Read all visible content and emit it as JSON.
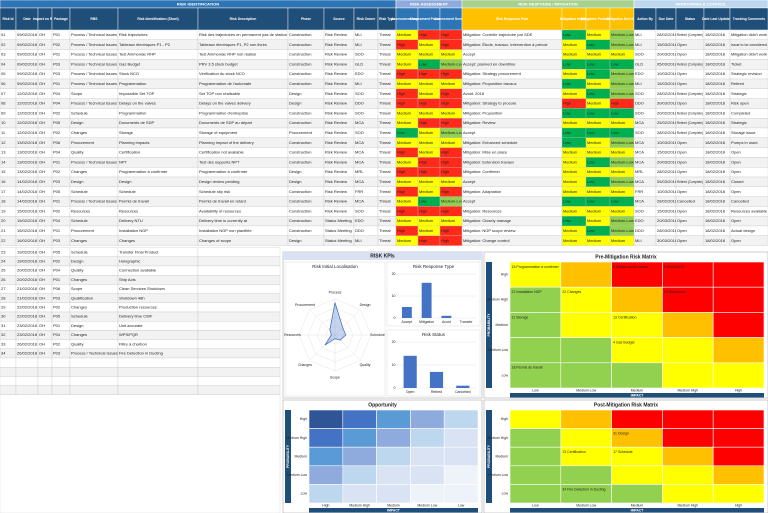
{
  "table": {
    "sections": [
      {
        "label": "RISK IDENTIFICATION"
      },
      {
        "label": "RISK ASSESSMENT"
      },
      {
        "label": "RISK RESPONSE / MITIGATION"
      },
      {
        "label": "MONITORING & CONTROL"
      }
    ],
    "columns": [
      "Risk Id",
      "Date",
      "Impact on Risk",
      "Package",
      "RBS",
      "Risk Identification (Short)",
      "Risk Description",
      "Phase",
      "Source",
      "Risk Owner",
      "Risk Type",
      "Assessment Impact",
      "Assessment Probability",
      "Assessment Severity",
      "Risk Response Plan",
      "Mitigation Impact",
      "Mitigation Probability",
      "Mitigation Severity",
      "Action By",
      "Due Date",
      "Status",
      "Date Last Updated",
      "Tracking Comments"
    ],
    "rows": [
      [
        "01",
        "09/02/2018",
        "OH",
        "P01",
        "Process / Technical Issues",
        "Risk trajectoires",
        "Risk des trajectoires en permanent pas de station",
        "Construction",
        "Risk Review",
        "MLI",
        "Threat",
        "Medium",
        "High",
        "High",
        "Mitigation: Contrôle trajectoire par SDE",
        "Low",
        "Medium",
        "Medium-Low",
        "MLI",
        "28/02/2018",
        "Retired (Complete)",
        "18/02/2018",
        "Mitigation didn't work"
      ],
      [
        "02",
        "09/02/2018",
        "OH",
        "P02",
        "Process / Technical Issues",
        "Tableaux électriques P1 - P2",
        "Tableaux électriques P1, P2 non livrés",
        "Construction",
        "Risk Review",
        "MLI",
        "Threat",
        "High",
        "Medium",
        "High",
        "Mitigation: Étude, travaux, intervention à prévoir",
        "Medium",
        "Low",
        "Medium-Low",
        "MLI",
        "15/03/2018",
        "Open",
        "18/02/2018",
        "Issue to be considered"
      ],
      [
        "03",
        "09/02/2018",
        "OH",
        "P01",
        "Process / Technical Issues",
        "Test Ammoniac RHP",
        "Test Ammoniac RHP non réalisé",
        "Construction",
        "Risk Review",
        "SOO",
        "Threat",
        "Medium",
        "Medium",
        "Medium",
        "Accept",
        "Medium",
        "Medium",
        "Medium",
        "SOO",
        "20/03/2018",
        "Open",
        "18/02/2018",
        "Mitigation didn't work"
      ],
      [
        "04",
        "09/02/2018",
        "OH",
        "P03",
        "Process / Technical Issues",
        "Gaz Budget",
        "PRV 3.5 stock budget",
        "Construction",
        "Risk Review",
        "GLD",
        "Threat",
        "Medium",
        "Low",
        "Medium-Low",
        "Accept: planned en downtime",
        "Low",
        "Low",
        "Low",
        "GLD",
        "05/03/2018",
        "Retired (Complete)",
        "18/02/2018",
        "Ticket"
      ],
      [
        "05",
        "09/02/2018",
        "OH",
        "P03",
        "Process / Technical Issues",
        "Stock NCO",
        "Vérification du stock NCO",
        "Construction",
        "Risk Review",
        "EDO",
        "Threat",
        "High",
        "High",
        "High",
        "Mitigation: Strategy procurement",
        "Medium",
        "Low",
        "Medium-Low",
        "EDO",
        "10/03/2018",
        "Open",
        "18/02/2018",
        "Strategic revision"
      ],
      [
        "06",
        "09/02/2018",
        "OH",
        "P01",
        "Process / Technical Issues",
        "Programmation",
        "Programmation de l'automate",
        "Construction",
        "Risk Review",
        "MLI",
        "Threat",
        "Medium",
        "Medium",
        "Medium",
        "Mitigation: Proposition travaux",
        "Low",
        "Medium",
        "Medium-Low",
        "MLI",
        "15/03/2018",
        "Open",
        "18/02/2018",
        "Retired"
      ],
      [
        "07",
        "12/02/2018",
        "OH",
        "P04",
        "Scope",
        "Impossible Set TOP",
        "Set TOP non réalisable",
        "Design",
        "Risk Review",
        "SOO",
        "Threat",
        "High",
        "Medium",
        "High",
        "Avoid: 2018",
        "Medium",
        "Low",
        "Medium-Low",
        "SOO",
        "28/02/2018",
        "Retired (Complete)",
        "18/02/2018",
        "Strategic"
      ],
      [
        "08",
        "12/02/2018",
        "OH",
        "P04",
        "Process / Technical Issues",
        "Delays on the valves",
        "Delays on the valves delivery",
        "Design",
        "Risk Review",
        "DDO",
        "Threat",
        "High",
        "High",
        "High",
        "Mitigation: Strategy to procure",
        "High",
        "Medium",
        "High",
        "DDO",
        "30/03/2018",
        "Open",
        "18/02/2018",
        "Risk open"
      ],
      [
        "09",
        "12/02/2018",
        "OH",
        "P02",
        "Schedule",
        "Programmation",
        "Programmation d'entreprise",
        "Construction",
        "Risk Review",
        "SOO",
        "Threat",
        "Medium",
        "Medium",
        "Medium",
        "Mitigation: Proposition",
        "Low",
        "Low",
        "Low",
        "SOO",
        "20/02/2018",
        "Retired (Complete)",
        "18/02/2018",
        "Completed"
      ],
      [
        "10",
        "12/02/2018",
        "OH",
        "P05",
        "Design",
        "Documents de SDP",
        "Documents de SDP au départ",
        "Construction",
        "Risk Review",
        "MCA",
        "Threat",
        "Medium",
        "High",
        "High",
        "Mitigation: Review",
        "Medium",
        "Medium",
        "Medium",
        "MCA",
        "25/02/2018",
        "Retired (Complete)",
        "18/02/2018",
        "Strategic"
      ],
      [
        "11",
        "12/02/2018",
        "OH",
        "P02",
        "Changes",
        "Storage",
        "Storage of equipment",
        "Procurement",
        "Risk Review",
        "SOO",
        "Threat",
        "Low",
        "Medium",
        "Medium-Low",
        "Accept",
        "Low",
        "Low",
        "Low",
        "SOO",
        "28/02/2018",
        "Retired (Complete)",
        "18/02/2018",
        "Storage issue"
      ],
      [
        "12",
        "13/02/2018",
        "OH",
        "P06",
        "Procurement",
        "Planning impacts",
        "Planning Impact of the delivery",
        "Construction",
        "Risk Review",
        "MCA",
        "Threat",
        "Medium",
        "Medium",
        "Medium",
        "Mitigation: Enhanced schedule",
        "Low",
        "Medium",
        "Medium-Low",
        "MCA",
        "10/03/2018",
        "Open",
        "18/02/2018",
        "Pumps in used"
      ],
      [
        "13",
        "13/02/2018",
        "OH",
        "P04",
        "Quality",
        "Certification",
        "Certification not available",
        "Construction",
        "Risk Review",
        "MCA",
        "Threat",
        "High",
        "Medium",
        "High",
        "Mitigation: Mise en place",
        "Medium",
        "Medium",
        "Medium",
        "MCA",
        "15/03/2018",
        "Open",
        "18/02/2018",
        "Open"
      ],
      [
        "14",
        "13/02/2018",
        "OH",
        "P01",
        "Process / Technical Issues",
        "NPT",
        "Test des supports NPT",
        "Construction",
        "Risk Review",
        "MCA",
        "Threat",
        "Medium",
        "High",
        "High",
        "Mitigation: Extension travaux",
        "Medium",
        "Low",
        "Medium-Low",
        "MCA",
        "20/03/2018",
        "Open",
        "18/02/2018",
        "Open"
      ],
      [
        "15",
        "13/02/2018",
        "OH",
        "P02",
        "Changes",
        "Programmation à confirmer",
        "Programmation à confirmer",
        "Design",
        "Risk Review",
        "MRL",
        "Threat",
        "High",
        "High",
        "High",
        "Mitigation: Confirmer",
        "Medium",
        "Medium",
        "Medium",
        "MRL",
        "28/02/2018",
        "Open",
        "18/02/2018",
        "Open"
      ],
      [
        "16",
        "14/02/2018",
        "OH",
        "P03",
        "Design",
        "Design",
        "Design review pending",
        "Design",
        "Risk Review",
        "MCA",
        "Threat",
        "Medium",
        "Medium",
        "Medium",
        "Accept",
        "Medium",
        "Low",
        "Medium-Low",
        "MCA",
        "05/03/2018",
        "Retired (Complete)",
        "18/02/2018",
        "Closed"
      ],
      [
        "17",
        "14/02/2018",
        "OH",
        "P05",
        "Schedule",
        "Schedule",
        "Schedule slip risk",
        "Construction",
        "Risk Review",
        "FRR",
        "Threat",
        "High",
        "Medium",
        "High",
        "Mitigation: Adaptation",
        "Medium",
        "Medium",
        "Medium",
        "FRR",
        "10/03/2018",
        "Open",
        "18/02/2018",
        "Open"
      ],
      [
        "18",
        "14/02/2018",
        "OH",
        "P01",
        "Process / Technical Issues",
        "Permis de travail",
        "Permis de travail en retard",
        "Construction",
        "Risk Review",
        "MCA",
        "Threat",
        "Medium",
        "Low",
        "Medium-Low",
        "Accept",
        "Low",
        "Low",
        "Low",
        "MCA",
        "28/02/2018",
        "Cancelled",
        "18/02/2018",
        "Cancelled"
      ],
      [
        "19",
        "15/02/2018",
        "OH",
        "P02",
        "Resources",
        "Resources",
        "Availability of resources",
        "Construction",
        "Risk Review",
        "SOO",
        "Threat",
        "High",
        "High",
        "High",
        "Mitigation: Resources",
        "Medium",
        "Medium",
        "Medium",
        "SOO",
        "15/03/2018",
        "Open",
        "18/02/2018",
        "Resources available"
      ],
      [
        "20",
        "15/02/2018",
        "OH",
        "P04",
        "Schedule",
        "Delivery NTU",
        "Delivery time is currently at",
        "Construction",
        "Status Meeting",
        "EDO",
        "Threat",
        "Medium",
        "Medium",
        "Medium",
        "Mitigation: Closely manage",
        "Low",
        "Medium",
        "Medium-Low",
        "EDO",
        "20/03/2018",
        "Open",
        "18/02/2018",
        "Open"
      ],
      [
        "21",
        "15/02/2018",
        "OH",
        "P01",
        "Procurement",
        "Installation NGP",
        "Installation NGP non planifiée",
        "Construction",
        "Status Meeting",
        "DDO",
        "Threat",
        "High",
        "Medium",
        "High",
        "Mitigation: NGP scope review",
        "Medium",
        "Low",
        "Medium-Low",
        "DDO",
        "28/03/2018",
        "Open",
        "18/02/2018",
        "Actual design"
      ],
      [
        "22",
        "16/02/2018",
        "OH",
        "P03",
        "Changes",
        "Changes",
        "Changes of scope",
        "Design",
        "Status Meeting",
        "MLI",
        "Threat",
        "Medium",
        "High",
        "High",
        "Mitigation: Change control",
        "Medium",
        "Medium",
        "Medium",
        "MLI",
        "30/03/2018",
        "Open",
        "18/02/2018",
        "Open"
      ]
    ],
    "lower_rows": [
      [
        "23",
        "19/02/2018",
        "OH",
        "P05",
        "Schedule",
        "Transfer Final Product"
      ],
      [
        "24",
        "19/02/2018",
        "OH",
        "P02",
        "Design",
        "Holographic"
      ],
      [
        "25",
        "20/02/2018",
        "OH",
        "P04",
        "Quality",
        "Connection available"
      ],
      [
        "26",
        "20/02/2018",
        "OH",
        "P01",
        "Changes",
        "Ship Acts"
      ],
      [
        "27",
        "21/02/2018",
        "OH",
        "P06",
        "Scope",
        "Clean Services Shutdown"
      ],
      [
        "28",
        "21/02/2018",
        "OH",
        "P03",
        "Qualification",
        "Shutdown 48h"
      ],
      [
        "29",
        "22/02/2018",
        "OH",
        "P02",
        "Changes",
        "Production resources"
      ],
      [
        "30",
        "22/02/2018",
        "OH",
        "P05",
        "Schedule",
        "Delivery time CWF"
      ],
      [
        "31",
        "23/02/2018",
        "OH",
        "P01",
        "Design",
        "Unit accurate"
      ],
      [
        "32",
        "23/02/2018",
        "OH",
        "P04",
        "Changes",
        "WPS/PQR"
      ],
      [
        "33",
        "26/02/2018",
        "OH",
        "P02",
        "Quality",
        "Filtre à charbon"
      ],
      [
        "34",
        "26/02/2018",
        "OH",
        "P03",
        "Process / Technical Issues",
        "Fire Detection in Ducting"
      ]
    ],
    "colors": {
      "High": "#ff2a1a",
      "Medium": "#ffff00",
      "Medium-Low": "#92d050",
      "Low": "#00b050"
    }
  },
  "kpi": {
    "title": "RISK KPIs",
    "charts": [
      {
        "type": "radar",
        "title": "Risk Initial Localisation",
        "categories": [
          "Process",
          "Design",
          "Schedule",
          "Quality",
          "Scope",
          "Changes",
          "Resources",
          "Procurement"
        ],
        "values": [
          9,
          3,
          3,
          2,
          1,
          4,
          1,
          2
        ],
        "rlim": [
          0,
          10
        ],
        "color": "#4472c4"
      },
      {
        "type": "bar",
        "title": "Risk Response Type",
        "categories": [
          "Accept",
          "Mitigation",
          "Avoid",
          "Transfer"
        ],
        "values": [
          5,
          16,
          1,
          0
        ],
        "ylim": [
          0,
          20
        ],
        "yticks": [
          0,
          10,
          20
        ],
        "color": "#4472c4"
      },
      {
        "type": "bar",
        "title": "Risk Status",
        "categories": [
          "Open",
          "Retired",
          "Cancelled"
        ],
        "values": [
          14,
          7,
          1
        ],
        "ylim": [
          0,
          20
        ],
        "yticks": [
          0,
          10,
          20
        ],
        "color": "#4472c4"
      }
    ]
  },
  "matrices": [
    {
      "title": "Pre-Mitigation Risk Matrix",
      "y_label": "PROBABILITY",
      "x_label": "IMPACT",
      "rows": [
        "High",
        "Medium High",
        "Medium",
        "Medium Low",
        "Low"
      ],
      "cols": [
        "Low",
        "Medium Low",
        "Medium",
        "Medium High",
        "High"
      ],
      "cells": [
        [
          "15 Programmation à confirmer",
          null,
          "8 Delays on the valves",
          "5 Stock NCO",
          null
        ],
        [
          "21 Installation NGP",
          "22 Changes",
          null,
          "19 Resources",
          null
        ],
        [
          "11 Storage",
          null,
          "13 Certification",
          null,
          null
        ],
        [
          null,
          null,
          "4 Gaz Budget",
          null,
          null
        ],
        [
          "18 Permis de travail",
          null,
          null,
          null,
          null
        ]
      ]
    },
    {
      "title": "Post-Mitigation Risk Matrix",
      "y_label": "PROBABILITY",
      "x_label": "IMPACT",
      "rows": [
        "High",
        "Medium High",
        "Medium",
        "Medium Low",
        "Low"
      ],
      "cols": [
        "Low",
        "Medium Low",
        "Medium",
        "Medium High",
        "High"
      ],
      "cells": [
        [
          null,
          null,
          null,
          null,
          null
        ],
        [
          null,
          null,
          "31 Design",
          null,
          null
        ],
        [
          null,
          "13 Certification",
          "17 Schedule",
          null,
          null
        ],
        [
          null,
          null,
          null,
          null,
          null
        ],
        [
          null,
          "34 Fire Detection in Ducting",
          null,
          null,
          null
        ]
      ]
    },
    {
      "title": "Opportunity",
      "y_label": "PROBABILITY",
      "x_label": "IMPACT",
      "rows": [
        "High",
        "Medium High",
        "Medium",
        "Medium Low",
        "Low"
      ],
      "cols": [
        "High",
        "Medium High",
        "Medium",
        "Medium Low",
        "Low"
      ],
      "cells": [
        [
          null,
          null,
          null,
          null,
          null
        ],
        [
          null,
          null,
          null,
          null,
          null
        ],
        [
          null,
          null,
          null,
          null,
          null
        ],
        [
          null,
          null,
          null,
          null,
          null
        ],
        [
          null,
          null,
          null,
          null,
          null
        ]
      ]
    }
  ]
}
